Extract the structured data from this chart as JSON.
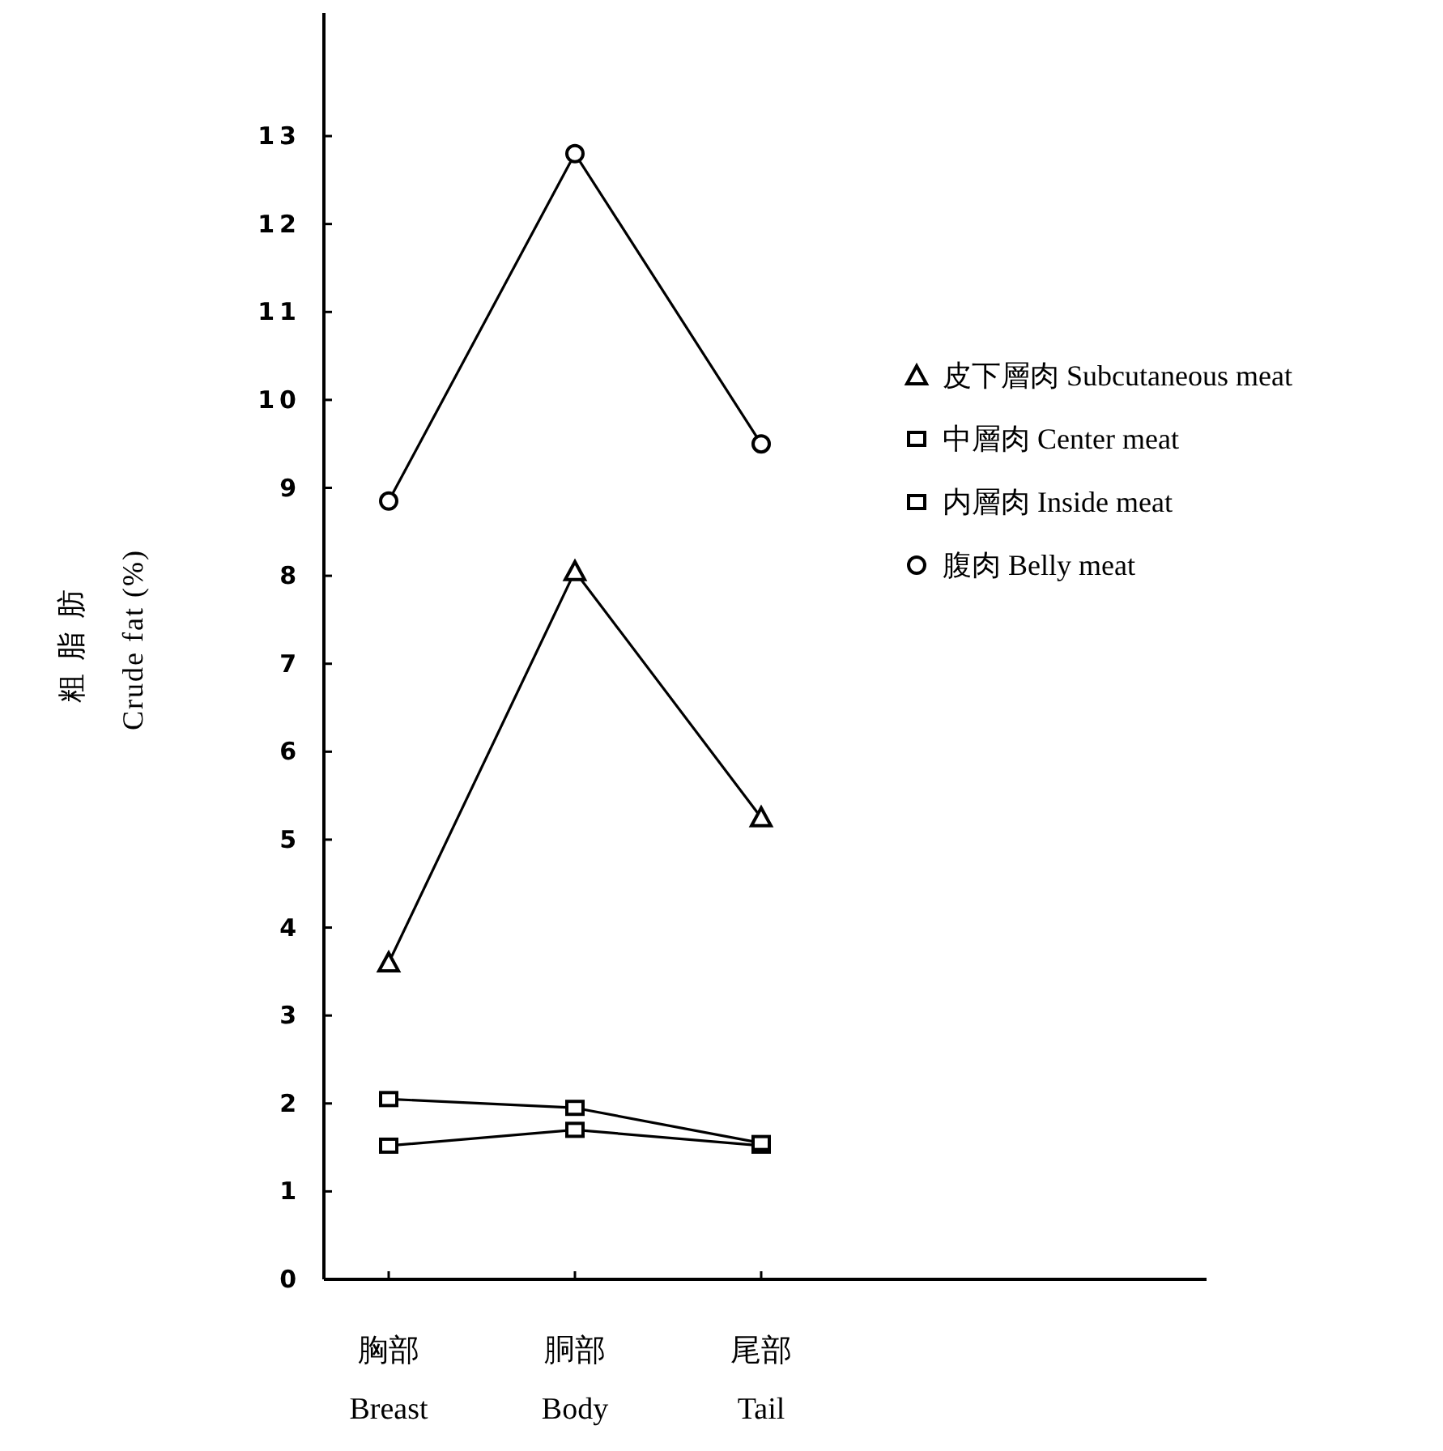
{
  "chart_data": {
    "type": "line",
    "ylabel": "粗脂肪\nCrude fat (%)",
    "categories": [
      "胸部\nBreast",
      "胴部\nBody",
      "尾部\nTail"
    ],
    "ylim": [
      0,
      14.4
    ],
    "yticks": [
      0,
      1,
      2,
      3,
      4,
      5,
      6,
      7,
      8,
      9,
      10,
      11,
      12,
      13
    ],
    "legend": "right",
    "grid": false,
    "line_style": "solid",
    "series": [
      {
        "name": "皮下層肉 Subcutaneous meat",
        "color": "#000000",
        "marker": "triangle",
        "values": [
          3.6,
          8.05,
          5.25
        ]
      },
      {
        "name": "中層肉 Center meat",
        "color": "#000000",
        "marker": "square",
        "values": [
          1.52,
          1.7,
          1.52
        ]
      },
      {
        "name": "内層肉 Inside meat",
        "color": "#000000",
        "marker": "square",
        "values": [
          2.05,
          1.95,
          1.55
        ]
      },
      {
        "name": "腹肉 Belly meat",
        "color": "#000000",
        "marker": "circle",
        "values": [
          8.85,
          12.8,
          9.5
        ]
      }
    ]
  }
}
